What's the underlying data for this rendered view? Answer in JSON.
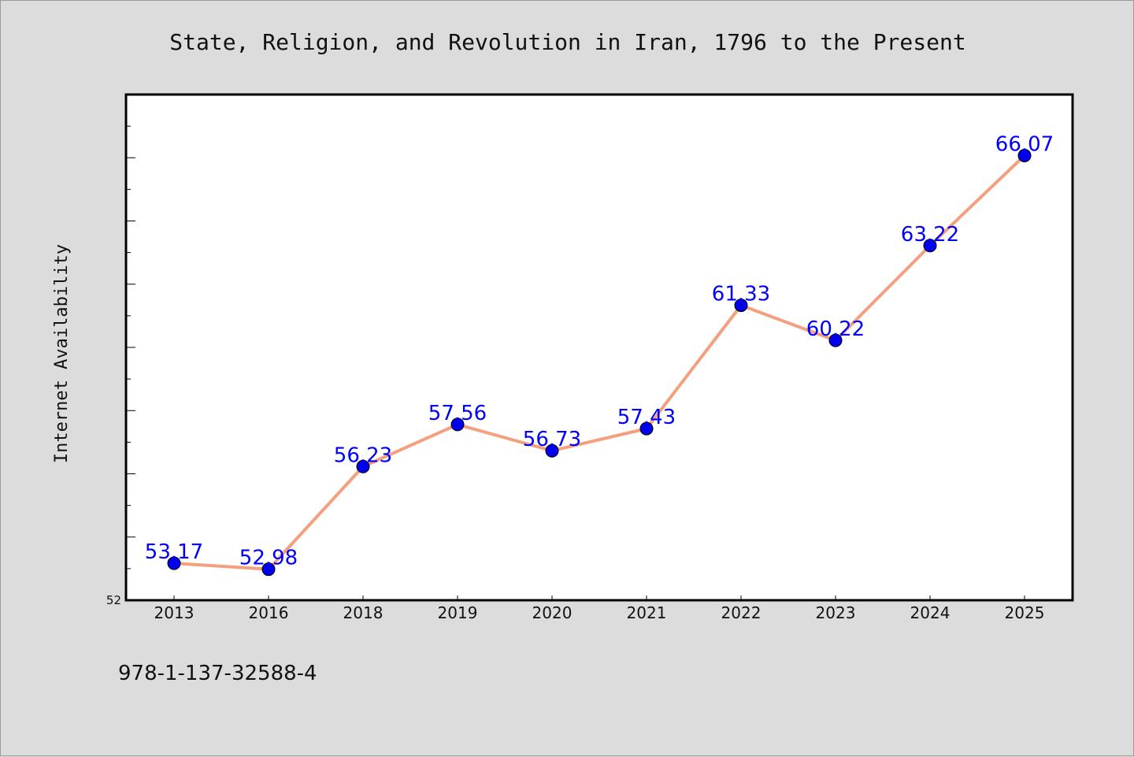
{
  "colors": {
    "background": "#dcdcdc",
    "plot_background": "#ffffff",
    "line": "#f4a07f",
    "marker": "#0000ee",
    "data_label": "#0000ff"
  },
  "footer": {
    "isbn": "978-1-137-32588-4"
  },
  "chart_data": {
    "type": "line",
    "title": "State, Religion, and Revolution in Iran, 1796 to the Present",
    "xlabel": "",
    "ylabel": "Internet Availability",
    "categories": [
      "2013",
      "2016",
      "2018",
      "2019",
      "2020",
      "2021",
      "2022",
      "2023",
      "2024",
      "2025"
    ],
    "series": [
      {
        "values": [
          53.17,
          52.98,
          56.23,
          57.56,
          56.73,
          57.43,
          61.33,
          60.22,
          63.22,
          66.07
        ]
      }
    ],
    "data_labels": [
      "53.17",
      "52.98",
      "56.23",
      "57.56",
      "56.73",
      "57.43",
      "61.33",
      "60.22",
      "63.22",
      "66.07"
    ],
    "y_tick_labels": [
      "52"
    ],
    "ylim": [
      52,
      68
    ],
    "y_minor_step": 1,
    "grid": false,
    "legend": "none"
  }
}
